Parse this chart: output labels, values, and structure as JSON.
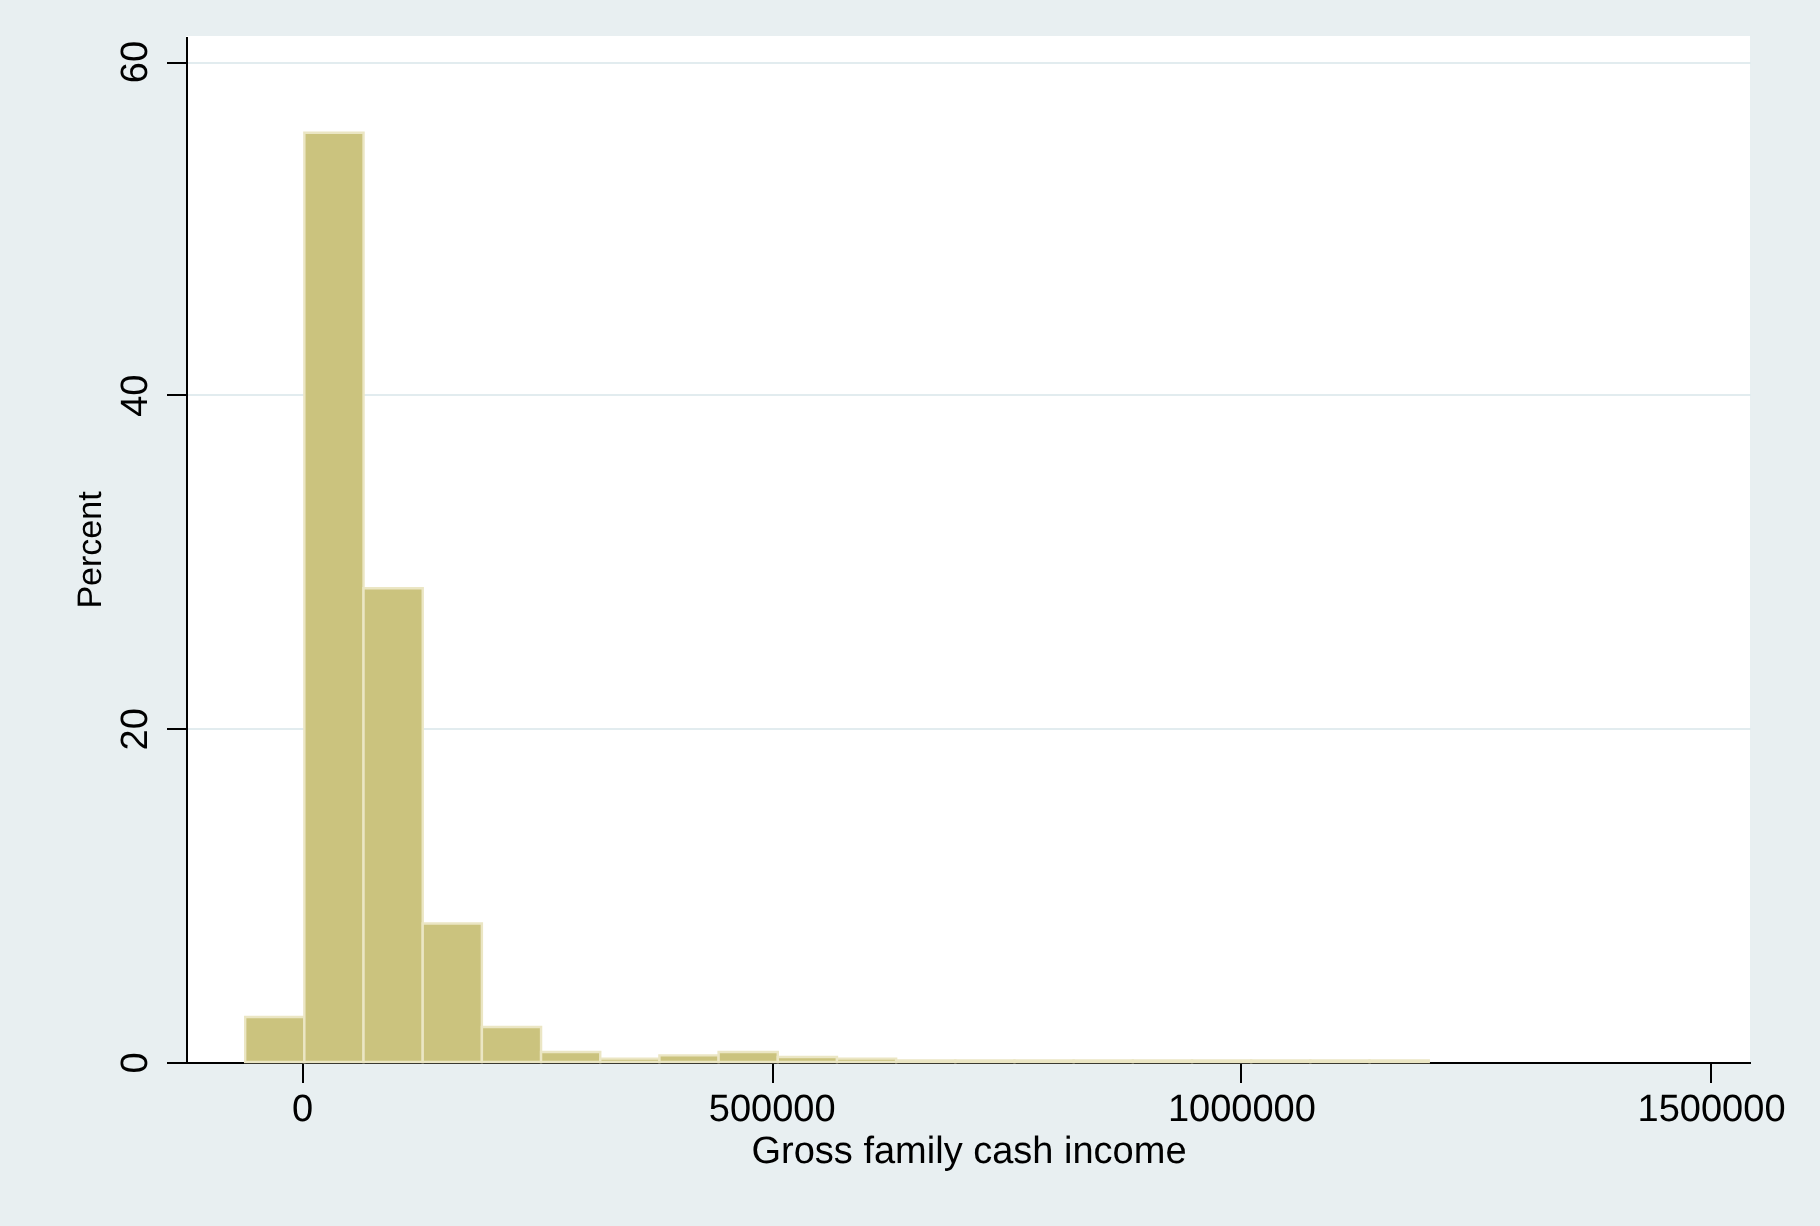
{
  "chart_data": {
    "type": "histogram",
    "xlabel": "Gross family cash income",
    "ylabel": "Percent",
    "bins": [
      -60000,
      3000,
      66000,
      129000,
      192000,
      255000,
      318000,
      381000,
      444000,
      507000,
      570000,
      633000,
      696000,
      759000,
      822000,
      885000,
      948000,
      1011000,
      1074000,
      1137000,
      1200000
    ],
    "values": [
      2.7,
      55.7,
      28.4,
      8.3,
      2.1,
      0.6,
      0.2,
      0.4,
      0.6,
      0.3,
      0.2,
      0.1,
      0.1,
      0.1,
      0.1,
      0.1,
      0.1,
      0.1,
      0.1,
      0.1
    ],
    "color": "#cbc37e",
    "xlim": [
      -123000,
      1542000
    ],
    "xticks": [
      0,
      500000,
      1000000,
      1500000
    ],
    "ylim": [
      0,
      61.5
    ],
    "yticks": [
      0,
      20,
      40,
      60
    ],
    "grid": "y"
  }
}
